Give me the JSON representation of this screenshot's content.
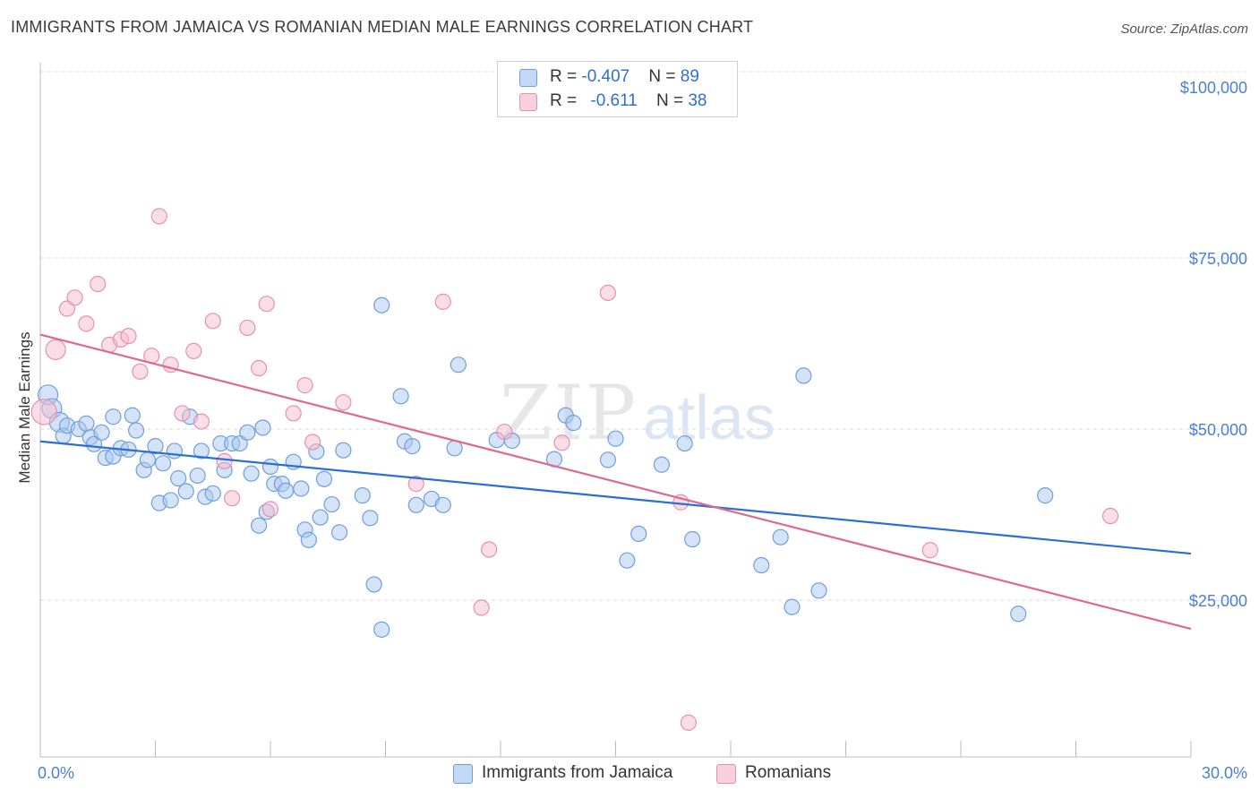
{
  "header": {
    "title": "IMMIGRANTS FROM JAMAICA VS ROMANIAN MEDIAN MALE EARNINGS CORRELATION CHART",
    "source": "Source: ZipAtlas.com"
  },
  "legend": {
    "rows": [
      {
        "r_label": "R = ",
        "r_value": "-0.407",
        "n_label": "N = ",
        "n_value": "89"
      },
      {
        "r_label": "R = ",
        "r_value": "-0.611",
        "n_label": "N = ",
        "n_value": "38"
      }
    ]
  },
  "colors": {
    "jamaica_fill": "#aac8f0",
    "jamaica_stroke": "#6f9fdc",
    "jamaica_line": "#2a6fd4",
    "romanian_fill": "#f5bed0",
    "romanian_stroke": "#e890ae",
    "romanian_line": "#e0688e",
    "tick_text": "#4a7fd4",
    "grid": "#d9d9d9"
  },
  "watermark": {
    "zip": "ZIP",
    "atlas": "atlas"
  },
  "chart_data": {
    "type": "scatter",
    "title": "IMMIGRANTS FROM JAMAICA VS ROMANIAN MEDIAN MALE EARNINGS CORRELATION CHART",
    "xlabel": "",
    "ylabel": "Median Male Earnings",
    "xlim": [
      0,
      30
    ],
    "ylim": [
      0,
      105000
    ],
    "x_tick_labels": [
      "0.0%",
      "30.0%"
    ],
    "y_ticks": [
      25000,
      50000,
      75000,
      100000
    ],
    "y_tick_labels": [
      "$25,000",
      "$50,000",
      "$75,000",
      "$100,000"
    ],
    "grid": true,
    "legend_position": "top-center",
    "series": [
      {
        "name": "Immigrants from Jamaica",
        "trend": {
          "x": [
            0,
            30
          ],
          "y": [
            48200,
            31800
          ]
        },
        "points": [
          [
            0.2,
            55000,
            1
          ],
          [
            0.3,
            53000,
            1
          ],
          [
            0.5,
            51000,
            1
          ],
          [
            0.6,
            49000,
            0
          ],
          [
            0.7,
            50500,
            0
          ],
          [
            1.0,
            50000,
            0
          ],
          [
            1.2,
            50800,
            0
          ],
          [
            1.3,
            48800,
            0
          ],
          [
            1.4,
            47800,
            0
          ],
          [
            1.6,
            49500,
            0
          ],
          [
            1.7,
            45800,
            0
          ],
          [
            1.9,
            46000,
            0
          ],
          [
            1.9,
            51800,
            0
          ],
          [
            2.1,
            47200,
            0
          ],
          [
            2.3,
            47000,
            0
          ],
          [
            2.4,
            52000,
            0
          ],
          [
            2.5,
            49800,
            0
          ],
          [
            2.7,
            44000,
            0
          ],
          [
            2.8,
            45500,
            0
          ],
          [
            3.0,
            47500,
            0
          ],
          [
            3.1,
            39200,
            0
          ],
          [
            3.2,
            45000,
            0
          ],
          [
            3.4,
            39600,
            0
          ],
          [
            3.5,
            46800,
            0
          ],
          [
            3.6,
            42800,
            0
          ],
          [
            3.8,
            40900,
            0
          ],
          [
            3.9,
            51800,
            0
          ],
          [
            4.1,
            43200,
            0
          ],
          [
            4.2,
            46800,
            0
          ],
          [
            4.3,
            40100,
            0
          ],
          [
            4.5,
            40600,
            0
          ],
          [
            4.7,
            47900,
            0
          ],
          [
            4.8,
            44000,
            0
          ],
          [
            5.0,
            47900,
            0
          ],
          [
            5.2,
            47900,
            0
          ],
          [
            5.4,
            49500,
            0
          ],
          [
            5.5,
            43500,
            0
          ],
          [
            5.7,
            35900,
            0
          ],
          [
            5.8,
            50200,
            0
          ],
          [
            5.9,
            37900,
            0
          ],
          [
            6.0,
            44500,
            0
          ],
          [
            6.1,
            42000,
            0
          ],
          [
            6.3,
            42000,
            0
          ],
          [
            6.4,
            41000,
            0
          ],
          [
            6.6,
            45200,
            0
          ],
          [
            6.8,
            41300,
            0
          ],
          [
            6.9,
            35300,
            0
          ],
          [
            7.0,
            33800,
            0
          ],
          [
            7.2,
            46700,
            0
          ],
          [
            7.3,
            37100,
            0
          ],
          [
            7.4,
            42700,
            0
          ],
          [
            7.6,
            39000,
            0
          ],
          [
            7.8,
            34900,
            0
          ],
          [
            7.9,
            46900,
            0
          ],
          [
            8.4,
            40300,
            0
          ],
          [
            8.6,
            37000,
            0
          ],
          [
            8.7,
            27300,
            0
          ],
          [
            8.9,
            68100,
            0
          ],
          [
            8.9,
            20700,
            0
          ],
          [
            9.4,
            54800,
            0
          ],
          [
            9.5,
            48200,
            0
          ],
          [
            9.7,
            47500,
            0
          ],
          [
            9.8,
            38900,
            0
          ],
          [
            10.2,
            39800,
            0
          ],
          [
            10.5,
            38900,
            0
          ],
          [
            10.8,
            47200,
            0
          ],
          [
            10.9,
            59400,
            0
          ],
          [
            11.9,
            48400,
            0
          ],
          [
            12.3,
            48300,
            0
          ],
          [
            13.4,
            45600,
            0
          ],
          [
            13.7,
            52000,
            0
          ],
          [
            13.9,
            50900,
            0
          ],
          [
            14.8,
            45500,
            0
          ],
          [
            15.0,
            48600,
            0
          ],
          [
            15.3,
            30800,
            0
          ],
          [
            15.6,
            34700,
            0
          ],
          [
            16.2,
            44800,
            0
          ],
          [
            16.8,
            47900,
            0
          ],
          [
            17.0,
            33900,
            0
          ],
          [
            18.8,
            30100,
            0
          ],
          [
            19.3,
            34200,
            0
          ],
          [
            19.6,
            24000,
            0
          ],
          [
            19.9,
            57800,
            0
          ],
          [
            20.3,
            26400,
            0
          ],
          [
            25.5,
            23000,
            0
          ],
          [
            26.2,
            40300,
            0
          ]
        ]
      },
      {
        "name": "Romanians",
        "trend": {
          "x": [
            0,
            30
          ],
          "y": [
            63800,
            20800
          ]
        },
        "points": [
          [
            0.1,
            52500,
            2
          ],
          [
            0.4,
            61600,
            1
          ],
          [
            0.7,
            67600,
            0
          ],
          [
            0.9,
            69200,
            0
          ],
          [
            1.2,
            65400,
            0
          ],
          [
            1.5,
            71200,
            0
          ],
          [
            1.8,
            62300,
            0
          ],
          [
            2.1,
            63100,
            0
          ],
          [
            2.3,
            63600,
            0
          ],
          [
            2.6,
            58400,
            0
          ],
          [
            2.9,
            60700,
            0
          ],
          [
            3.1,
            81100,
            0
          ],
          [
            3.4,
            59400,
            0
          ],
          [
            3.7,
            52300,
            0
          ],
          [
            4.0,
            61400,
            0
          ],
          [
            4.2,
            51100,
            0
          ],
          [
            4.5,
            65800,
            0
          ],
          [
            4.8,
            45300,
            0
          ],
          [
            5.0,
            39900,
            0
          ],
          [
            5.4,
            64800,
            0
          ],
          [
            5.7,
            58900,
            0
          ],
          [
            5.9,
            68300,
            0
          ],
          [
            6.0,
            38300,
            0
          ],
          [
            6.6,
            52300,
            0
          ],
          [
            6.9,
            56400,
            0
          ],
          [
            7.1,
            48100,
            0
          ],
          [
            7.9,
            53900,
            0
          ],
          [
            9.8,
            42000,
            0
          ],
          [
            10.5,
            68600,
            0
          ],
          [
            11.5,
            23900,
            0
          ],
          [
            11.7,
            32400,
            0
          ],
          [
            12.1,
            49600,
            0
          ],
          [
            13.6,
            48000,
            0
          ],
          [
            14.8,
            69900,
            0
          ],
          [
            16.7,
            39300,
            0
          ],
          [
            16.9,
            7100,
            0
          ],
          [
            23.2,
            32300,
            0
          ],
          [
            27.9,
            37300,
            0
          ]
        ]
      }
    ]
  },
  "bottom_legend": {
    "items": [
      {
        "label": "Immigrants from Jamaica"
      },
      {
        "label": "Romanians"
      }
    ]
  }
}
